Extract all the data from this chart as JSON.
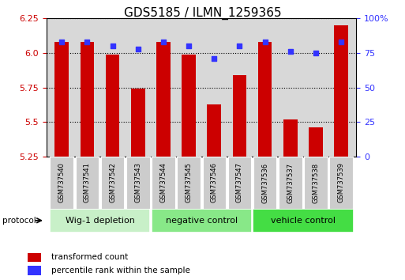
{
  "title": "GDS5185 / ILMN_1259365",
  "samples": [
    "GSM737540",
    "GSM737541",
    "GSM737542",
    "GSM737543",
    "GSM737544",
    "GSM737545",
    "GSM737546",
    "GSM737547",
    "GSM737536",
    "GSM737537",
    "GSM737538",
    "GSM737539"
  ],
  "red_values": [
    6.08,
    6.08,
    5.99,
    5.74,
    6.08,
    5.99,
    5.63,
    5.84,
    6.08,
    5.52,
    5.46,
    6.2
  ],
  "blue_values": [
    83,
    83,
    80,
    78,
    83,
    80,
    71,
    80,
    83,
    76,
    75,
    83
  ],
  "ylim_left": [
    5.25,
    6.25
  ],
  "ylim_right": [
    0,
    100
  ],
  "yticks_left": [
    5.25,
    5.5,
    5.75,
    6.0,
    6.25
  ],
  "yticks_right": [
    0,
    25,
    50,
    75,
    100
  ],
  "groups": [
    {
      "label": "Wig-1 depletion",
      "start": 0,
      "end": 3
    },
    {
      "label": "negative control",
      "start": 4,
      "end": 7
    },
    {
      "label": "vehicle control",
      "start": 8,
      "end": 11
    }
  ],
  "group_colors": [
    "#c8f0c8",
    "#88e888",
    "#44dd44"
  ],
  "bar_color": "#cc0000",
  "dot_color": "#3333ff",
  "bar_width": 0.55,
  "bar_bottom": 5.25,
  "legend_red_label": "transformed count",
  "legend_blue_label": "percentile rank within the sample",
  "protocol_label": "protocol",
  "axis_bg": "#d8d8d8",
  "title_fontsize": 11,
  "tick_fontsize": 8,
  "sample_fontsize": 6,
  "group_fontsize": 8
}
